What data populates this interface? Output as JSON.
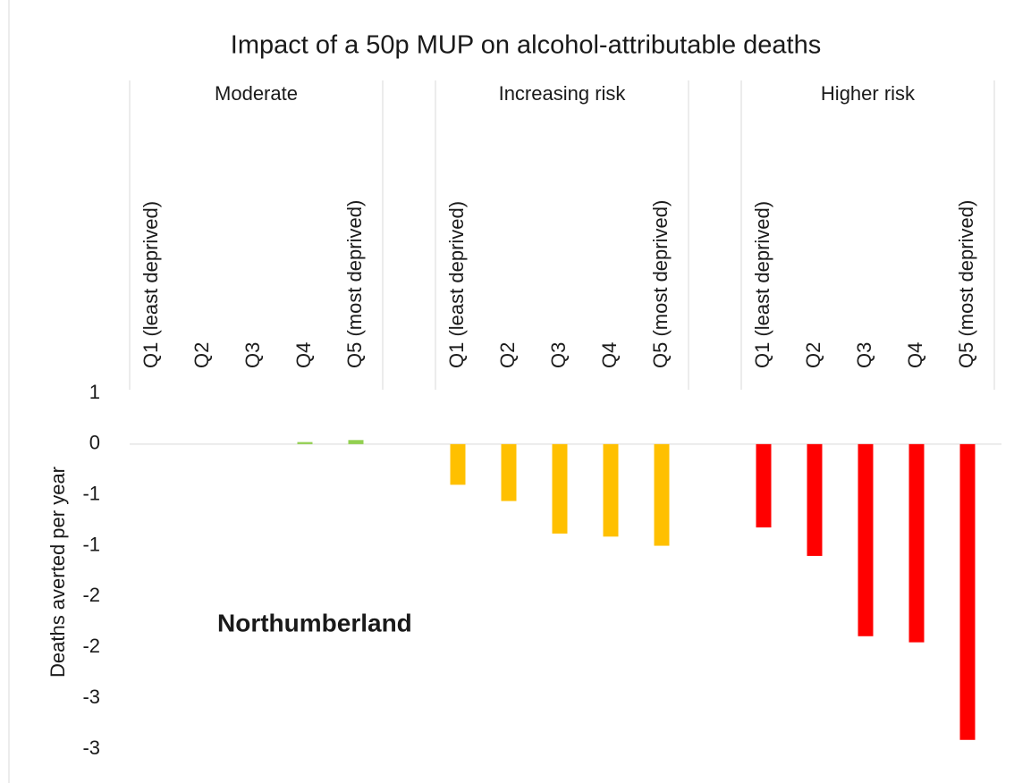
{
  "chart_data": {
    "type": "bar",
    "title": "Impact of a 50p MUP on alcohol-attributable  deaths",
    "y_label": "Deaths averted per year",
    "annotation": "Northumberland",
    "ylim": [
      -3,
      0.5
    ],
    "yticks": [
      {
        "value": 0.5,
        "label": "1"
      },
      0,
      {
        "value": -0.5,
        "label": "-1"
      },
      -1,
      {
        "value": -1.5,
        "label": "-2"
      },
      -2,
      {
        "value": -2.5,
        "label": "-3"
      },
      -3
    ],
    "groups": [
      {
        "name": "Moderate",
        "color": "#92d050",
        "categories": [
          "Q1  (least deprived)",
          "Q2",
          "Q3",
          "Q4",
          "Q5  (most deprived)"
        ],
        "values": [
          0,
          0,
          0,
          0.02,
          0.04
        ]
      },
      {
        "name": "Increasing risk",
        "color": "#ffc000",
        "categories": [
          "Q1  (least deprived)",
          "Q2",
          "Q3",
          "Q4",
          "Q5  (most deprived)"
        ],
        "values": [
          -0.4,
          -0.56,
          -0.88,
          -0.91,
          -1.0
        ]
      },
      {
        "name": "Higher risk",
        "color": "#ff0000",
        "categories": [
          "Q1  (least deprived)",
          "Q2",
          "Q3",
          "Q4",
          "Q5  (most deprived)"
        ],
        "values": [
          -0.82,
          -1.1,
          -1.89,
          -1.95,
          -2.91
        ]
      }
    ]
  }
}
